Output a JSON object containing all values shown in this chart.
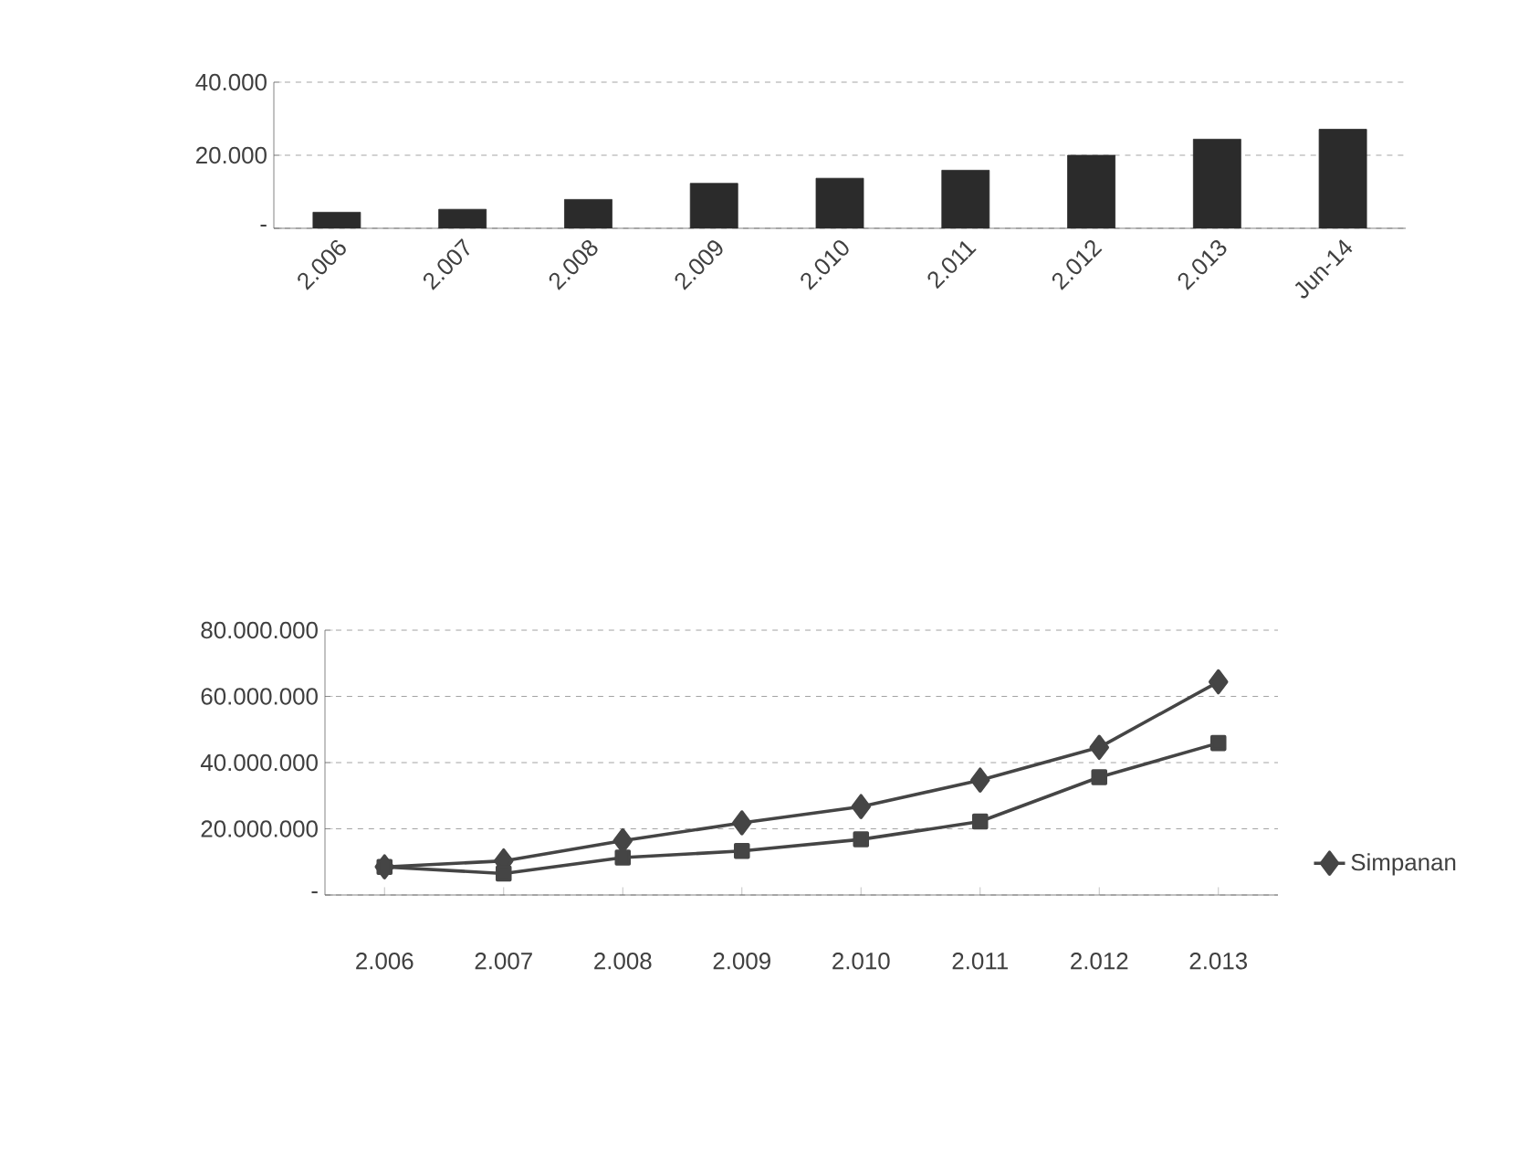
{
  "chart_data": [
    {
      "type": "bar",
      "categories": [
        "2.006",
        "2.007",
        "2.008",
        "2.009",
        "2.010",
        "2.011",
        "2.012",
        "2.013",
        "Jun-14"
      ],
      "values": [
        4400,
        5200,
        7900,
        12300,
        13700,
        15900,
        20000,
        24400,
        27100
      ],
      "color": "#2b2b2b",
      "ylim": [
        0,
        40000
      ],
      "yticks": [
        {
          "value": 0,
          "label": "-"
        },
        {
          "value": 20000,
          "label": "20.000"
        },
        {
          "value": 40000,
          "label": "40.000"
        }
      ],
      "grid": "y"
    },
    {
      "type": "line",
      "categories": [
        "2.006",
        "2.007",
        "2.008",
        "2.009",
        "2.010",
        "2.011",
        "2.012",
        "2.013"
      ],
      "series": [
        {
          "name": "Simpanan",
          "color": "#454545",
          "marker": "diamond",
          "values": [
            8500000,
            10300000,
            16400000,
            21800000,
            26700000,
            34700000,
            44600000,
            64400000
          ]
        },
        {
          "color": "#454545",
          "marker": "square",
          "values": [
            8500000,
            6500000,
            11300000,
            13300000,
            16800000,
            22200000,
            35600000,
            45900000
          ]
        }
      ],
      "ylim": [
        0,
        80000000
      ],
      "yticks": [
        {
          "value": 0,
          "label": "-"
        },
        {
          "value": 20000000,
          "label": "20.000.000"
        },
        {
          "value": 40000000,
          "label": "40.000.000"
        },
        {
          "value": 60000000,
          "label": "60.000.000"
        },
        {
          "value": 80000000,
          "label": "80.000.000"
        }
      ],
      "grid": "y",
      "legend": "right"
    }
  ]
}
